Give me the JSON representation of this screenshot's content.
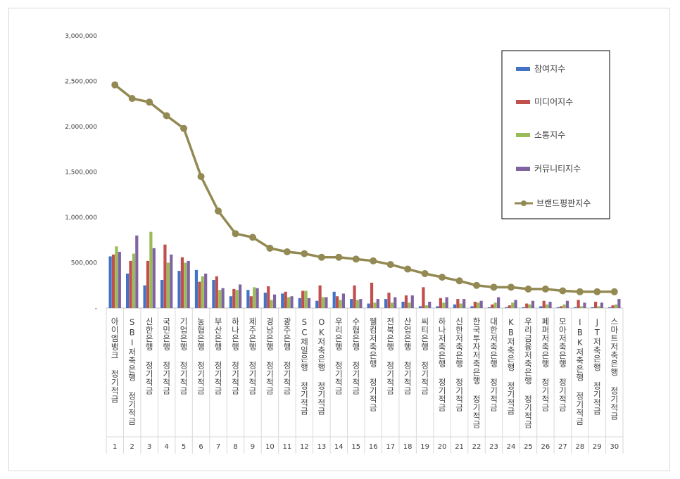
{
  "chart_data": {
    "type": "bar",
    "title": "",
    "xlabel": "",
    "ylabel": "",
    "ylim": [
      0,
      3000000
    ],
    "yticks": [
      "-",
      "500,000",
      "1,000,000",
      "1,500,000",
      "2,000,000",
      "2,500,000",
      "3,000,000"
    ],
    "grid": false,
    "legend_position": "right",
    "categories": [
      "아이엠뱅크 정기적금",
      "SBI저축은행 정기적금",
      "신한은행 정기적금",
      "국민은행 정기적금",
      "기업은행 정기적금",
      "농협은행 정기적금",
      "부산은행 정기적금",
      "하나은행 정기적금",
      "제주은행 정기적금",
      "경남은행 정기적금",
      "광주은행 정기적금",
      "SC제일은행 정기적금",
      "OK저축은행 정기적금",
      "우리은행 정기적금",
      "수협은행 정기적금",
      "웰컴저축은행 정기적금",
      "전북은행 정기적금",
      "산업은행 정기적금",
      "씨티은행 정기적금",
      "하나저축은행 정기적금",
      "신한저축은행 정기적금",
      "한국투자저축은행 정기적금",
      "대한저축은행 정기적금",
      "KB저축은행 정기적금",
      "우리금융저축은행 정기적금",
      "페퍼저축은행 정기적금",
      "모아저축은행 정기적금",
      "IBK저축은행 정기적금",
      "JT저축은행 정기적금",
      "스마트저축은행 정기적금"
    ],
    "ranks": [
      "1",
      "2",
      "3",
      "4",
      "5",
      "6",
      "7",
      "8",
      "9",
      "10",
      "11",
      "12",
      "13",
      "14",
      "15",
      "16",
      "17",
      "18",
      "19",
      "20",
      "21",
      "22",
      "23",
      "24",
      "25",
      "26",
      "27",
      "28",
      "29",
      "30"
    ],
    "series": [
      {
        "name": "참여지수",
        "kind": "bar",
        "color": "#4472c4",
        "values": [
          570000,
          380000,
          250000,
          310000,
          410000,
          420000,
          310000,
          130000,
          200000,
          170000,
          160000,
          110000,
          80000,
          180000,
          100000,
          50000,
          100000,
          70000,
          20000,
          20000,
          40000,
          20000,
          10000,
          10000,
          10000,
          20000,
          10000,
          10000,
          10000,
          10000
        ]
      },
      {
        "name": "미디어지수",
        "kind": "bar",
        "color": "#c0504d",
        "values": [
          590000,
          520000,
          520000,
          700000,
          560000,
          290000,
          350000,
          210000,
          130000,
          240000,
          180000,
          190000,
          250000,
          130000,
          250000,
          280000,
          170000,
          140000,
          230000,
          110000,
          100000,
          70000,
          40000,
          30000,
          50000,
          80000,
          20000,
          90000,
          70000,
          30000
        ]
      },
      {
        "name": "소통지수",
        "kind": "bar",
        "color": "#9bbb59",
        "values": [
          680000,
          600000,
          840000,
          500000,
          500000,
          350000,
          200000,
          200000,
          230000,
          90000,
          120000,
          190000,
          120000,
          90000,
          90000,
          60000,
          60000,
          60000,
          30000,
          60000,
          50000,
          60000,
          60000,
          60000,
          40000,
          40000,
          40000,
          20000,
          20000,
          40000
        ]
      },
      {
        "name": "커뮤니티지수",
        "kind": "bar",
        "color": "#8064a2",
        "values": [
          620000,
          800000,
          660000,
          590000,
          520000,
          380000,
          220000,
          260000,
          220000,
          150000,
          130000,
          110000,
          120000,
          160000,
          100000,
          100000,
          120000,
          140000,
          70000,
          120000,
          100000,
          80000,
          120000,
          90000,
          80000,
          70000,
          80000,
          60000,
          60000,
          100000
        ]
      },
      {
        "name": "브랜드평판지수",
        "kind": "line",
        "color": "#938953",
        "values": [
          2460000,
          2310000,
          2270000,
          2120000,
          1980000,
          1450000,
          1070000,
          820000,
          780000,
          660000,
          620000,
          600000,
          560000,
          560000,
          540000,
          520000,
          480000,
          430000,
          380000,
          340000,
          300000,
          250000,
          230000,
          230000,
          210000,
          210000,
          190000,
          180000,
          180000,
          180000
        ]
      }
    ]
  }
}
